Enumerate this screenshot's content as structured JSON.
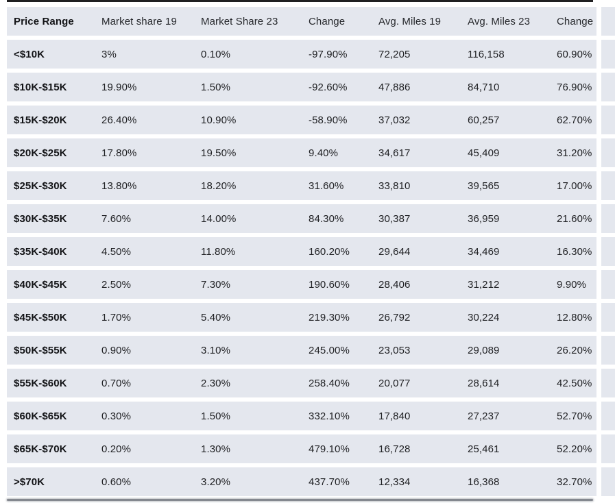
{
  "colors": {
    "row_background": "#e4e7ee",
    "row_separator": "#ffffff",
    "text": "#202124",
    "top_rule": "#1f1f21",
    "bottom_rule": "#84888f"
  },
  "chart_data": {
    "type": "table",
    "columns": [
      "Price Range",
      "Market share 19",
      "Market Share 23",
      "Change",
      "Avg. Miles 19",
      "Avg. Miles 23",
      "Change"
    ],
    "rows": [
      [
        "<$10K",
        "3%",
        "0.10%",
        "-97.90%",
        "72,205",
        "116,158",
        "60.90%"
      ],
      [
        "$10K-$15K",
        "19.90%",
        "1.50%",
        "-92.60%",
        "47,886",
        "84,710",
        "76.90%"
      ],
      [
        "$15K-$20K",
        "26.40%",
        "10.90%",
        "-58.90%",
        "37,032",
        "60,257",
        "62.70%"
      ],
      [
        "$20K-$25K",
        "17.80%",
        "19.50%",
        "9.40%",
        "34,617",
        "45,409",
        "31.20%"
      ],
      [
        "$25K-$30K",
        "13.80%",
        "18.20%",
        "31.60%",
        "33,810",
        "39,565",
        "17.00%"
      ],
      [
        "$30K-$35K",
        "7.60%",
        "14.00%",
        "84.30%",
        "30,387",
        "36,959",
        "21.60%"
      ],
      [
        "$35K-$40K",
        "4.50%",
        "11.80%",
        "160.20%",
        "29,644",
        "34,469",
        "16.30%"
      ],
      [
        "$40K-$45K",
        "2.50%",
        "7.30%",
        "190.60%",
        "28,406",
        "31,212",
        "9.90%"
      ],
      [
        "$45K-$50K",
        "1.70%",
        "5.40%",
        "219.30%",
        "26,792",
        "30,224",
        "12.80%"
      ],
      [
        "$50K-$55K",
        "0.90%",
        "3.10%",
        "245.00%",
        "23,053",
        "29,089",
        "26.20%"
      ],
      [
        "$55K-$60K",
        "0.70%",
        "2.30%",
        "258.40%",
        "20,077",
        "28,614",
        "42.50%"
      ],
      [
        "$60K-$65K",
        "0.30%",
        "1.50%",
        "332.10%",
        "17,840",
        "27,237",
        "52.70%"
      ],
      [
        "$65K-$70K",
        "0.20%",
        "1.30%",
        "479.10%",
        "16,728",
        "25,461",
        "52.20%"
      ],
      [
        ">$70K",
        "0.60%",
        "3.20%",
        "437.70%",
        "12,334",
        "16,368",
        "32.70%"
      ]
    ]
  }
}
